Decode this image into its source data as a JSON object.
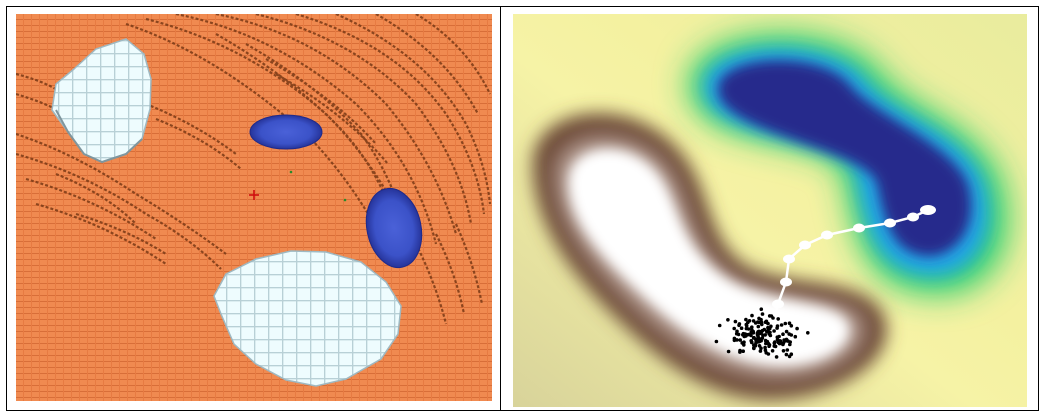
{
  "figure": {
    "left_panel": {
      "description_role": "3d-voxel-terrain",
      "colors": {
        "terrain": "#f08a50",
        "terrain_dark": "#7a3a16",
        "snow": "#dff4f7",
        "snow_edge": "#9fb9c2",
        "water": "#3f56cf",
        "water_dark": "#1f2a8a",
        "marker": "#d01010"
      },
      "icons": [
        "crosshair-marker-icon"
      ]
    },
    "right_panel": {
      "description_role": "2d-potential-heatmap",
      "colors": {
        "background": "#f6f3a6",
        "valley_outer": "#6b4636",
        "valley_inner": "#ffffff",
        "basin_outer": "#2ad070",
        "basin_mid": "#22a4e8",
        "basin_inner": "#262a8c",
        "trajectory": "#ffffff",
        "samples": "#000000"
      },
      "trajectory_point_count": 10,
      "sample_count": 160
    }
  }
}
